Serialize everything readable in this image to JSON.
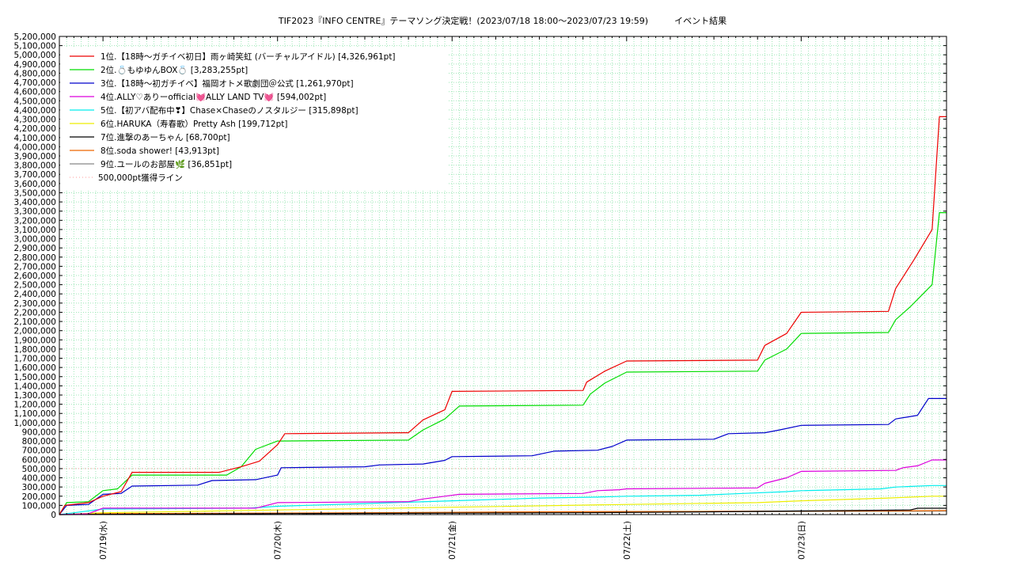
{
  "chart_data": {
    "type": "line",
    "title": "TIF2023『INFO CENTRE』テーマソング決定戦！(2023/07/18 18:00～2023/07/23 19:59)　　　イベント結果",
    "ylim": [
      0,
      5200000
    ],
    "y_tick_step": 100000,
    "x_range": [
      "2023/07/18 18:00",
      "2023/07/23 19:59"
    ],
    "x_ticks": [
      "07/19(水)",
      "07/20(木)",
      "07/21(金)",
      "07/22(土)",
      "07/23(日)"
    ],
    "grid": true,
    "legend_position": "top-left",
    "threshold": {
      "name": "500,000pt獲得ライン",
      "value": 500000,
      "color": "#ff9999"
    },
    "series": [
      {
        "name": "1位.【18時～ガチイベ初日】雨ヶ崎笑虹 (バーチャルアイドル) [4,326,961pt]",
        "color": "#ee0000",
        "points": [
          [
            "2023/07/18 18:00",
            0
          ],
          [
            "2023/07/18 18:45",
            100000
          ],
          [
            "2023/07/18 22:00",
            130000
          ],
          [
            "2023/07/19 00:00",
            200000
          ],
          [
            "2023/07/19 02:30",
            250000
          ],
          [
            "2023/07/19 04:00",
            460000
          ],
          [
            "2023/07/19 16:00",
            460000
          ],
          [
            "2023/07/19 19:00",
            520000
          ],
          [
            "2023/07/19 21:30",
            580000
          ],
          [
            "2023/07/20 00:00",
            760000
          ],
          [
            "2023/07/20 01:00",
            880000
          ],
          [
            "2023/07/20 18:00",
            890000
          ],
          [
            "2023/07/20 20:00",
            1030000
          ],
          [
            "2023/07/20 23:00",
            1140000
          ],
          [
            "2023/07/21 00:00",
            1340000
          ],
          [
            "2023/07/21 18:00",
            1350000
          ],
          [
            "2023/07/21 18:30",
            1440000
          ],
          [
            "2023/07/21 21:00",
            1560000
          ],
          [
            "2023/07/22 00:00",
            1670000
          ],
          [
            "2023/07/22 18:00",
            1680000
          ],
          [
            "2023/07/22 19:00",
            1840000
          ],
          [
            "2023/07/22 22:00",
            1970000
          ],
          [
            "2023/07/23 00:00",
            2200000
          ],
          [
            "2023/07/23 12:00",
            2210000
          ],
          [
            "2023/07/23 13:00",
            2460000
          ],
          [
            "2023/07/23 15:30",
            2770000
          ],
          [
            "2023/07/23 18:00",
            3100000
          ],
          [
            "2023/07/23 19:00",
            4326961
          ],
          [
            "2023/07/23 19:59",
            4326961
          ]
        ]
      },
      {
        "name": "2位.💍もゆゆんBOX💍 [3,283,255pt]",
        "color": "#00dd00",
        "points": [
          [
            "2023/07/18 18:00",
            0
          ],
          [
            "2023/07/18 19:00",
            130000
          ],
          [
            "2023/07/18 22:00",
            140000
          ],
          [
            "2023/07/19 00:00",
            260000
          ],
          [
            "2023/07/19 02:00",
            280000
          ],
          [
            "2023/07/19 04:00",
            430000
          ],
          [
            "2023/07/19 17:00",
            430000
          ],
          [
            "2023/07/19 19:00",
            520000
          ],
          [
            "2023/07/19 21:00",
            710000
          ],
          [
            "2023/07/20 00:00",
            800000
          ],
          [
            "2023/07/20 18:00",
            810000
          ],
          [
            "2023/07/20 20:00",
            920000
          ],
          [
            "2023/07/20 23:00",
            1040000
          ],
          [
            "2023/07/21 01:00",
            1180000
          ],
          [
            "2023/07/21 18:00",
            1190000
          ],
          [
            "2023/07/21 19:00",
            1310000
          ],
          [
            "2023/07/21 21:00",
            1430000
          ],
          [
            "2023/07/22 00:00",
            1550000
          ],
          [
            "2023/07/22 18:00",
            1560000
          ],
          [
            "2023/07/22 19:00",
            1680000
          ],
          [
            "2023/07/22 22:00",
            1800000
          ],
          [
            "2023/07/23 00:00",
            1970000
          ],
          [
            "2023/07/23 12:00",
            1980000
          ],
          [
            "2023/07/23 13:00",
            2120000
          ],
          [
            "2023/07/23 15:00",
            2260000
          ],
          [
            "2023/07/23 18:00",
            2500000
          ],
          [
            "2023/07/23 19:00",
            3283255
          ],
          [
            "2023/07/23 19:59",
            3283255
          ]
        ]
      },
      {
        "name": "3位.【18時～初ガチイベ】福岡オトメ歌劇団＠公式 [1,261,970pt]",
        "color": "#0000cc",
        "points": [
          [
            "2023/07/18 18:00",
            0
          ],
          [
            "2023/07/18 19:00",
            100000
          ],
          [
            "2023/07/18 22:00",
            110000
          ],
          [
            "2023/07/19 00:00",
            220000
          ],
          [
            "2023/07/19 02:30",
            230000
          ],
          [
            "2023/07/19 04:00",
            310000
          ],
          [
            "2023/07/19 13:00",
            320000
          ],
          [
            "2023/07/19 15:00",
            370000
          ],
          [
            "2023/07/19 21:00",
            380000
          ],
          [
            "2023/07/20 00:00",
            430000
          ],
          [
            "2023/07/20 00:30",
            510000
          ],
          [
            "2023/07/20 12:00",
            520000
          ],
          [
            "2023/07/20 14:00",
            540000
          ],
          [
            "2023/07/20 20:00",
            550000
          ],
          [
            "2023/07/20 23:00",
            590000
          ],
          [
            "2023/07/21 00:00",
            630000
          ],
          [
            "2023/07/21 11:00",
            640000
          ],
          [
            "2023/07/21 14:00",
            690000
          ],
          [
            "2023/07/21 20:00",
            700000
          ],
          [
            "2023/07/21 22:00",
            740000
          ],
          [
            "2023/07/22 00:00",
            810000
          ],
          [
            "2023/07/22 12:00",
            820000
          ],
          [
            "2023/07/22 14:00",
            880000
          ],
          [
            "2023/07/22 19:00",
            890000
          ],
          [
            "2023/07/22 21:00",
            920000
          ],
          [
            "2023/07/23 00:00",
            970000
          ],
          [
            "2023/07/23 12:00",
            980000
          ],
          [
            "2023/07/23 13:00",
            1040000
          ],
          [
            "2023/07/23 16:00",
            1080000
          ],
          [
            "2023/07/23 17:30",
            1261970
          ],
          [
            "2023/07/23 19:59",
            1261970
          ]
        ]
      },
      {
        "name": "4位.ALLY♡ありーofficial💓ALLY LAND TV💓 [594,002pt]",
        "color": "#dd00dd",
        "points": [
          [
            "2023/07/18 18:00",
            0
          ],
          [
            "2023/07/18 22:00",
            10000
          ],
          [
            "2023/07/19 00:00",
            70000
          ],
          [
            "2023/07/19 21:00",
            70000
          ],
          [
            "2023/07/20 00:00",
            130000
          ],
          [
            "2023/07/20 18:00",
            140000
          ],
          [
            "2023/07/20 20:00",
            170000
          ],
          [
            "2023/07/20 23:00",
            200000
          ],
          [
            "2023/07/21 01:00",
            220000
          ],
          [
            "2023/07/21 18:00",
            230000
          ],
          [
            "2023/07/21 20:00",
            260000
          ],
          [
            "2023/07/21 23:00",
            270000
          ],
          [
            "2023/07/22 00:00",
            280000
          ],
          [
            "2023/07/22 18:00",
            290000
          ],
          [
            "2023/07/22 19:00",
            340000
          ],
          [
            "2023/07/22 22:00",
            400000
          ],
          [
            "2023/07/23 00:00",
            470000
          ],
          [
            "2023/07/23 13:00",
            480000
          ],
          [
            "2023/07/23 14:00",
            510000
          ],
          [
            "2023/07/23 16:00",
            530000
          ],
          [
            "2023/07/23 18:00",
            594002
          ],
          [
            "2023/07/23 19:59",
            594002
          ]
        ]
      },
      {
        "name": "5位.【初アバ配布中❣】Chase×Chaseのノスタルジー [315,898pt]",
        "color": "#00eeee",
        "points": [
          [
            "2023/07/18 18:00",
            0
          ],
          [
            "2023/07/18 20:00",
            20000
          ],
          [
            "2023/07/19 00:00",
            60000
          ],
          [
            "2023/07/19 20:00",
            70000
          ],
          [
            "2023/07/20 00:00",
            90000
          ],
          [
            "2023/07/20 12:00",
            120000
          ],
          [
            "2023/07/21 00:00",
            150000
          ],
          [
            "2023/07/21 08:00",
            170000
          ],
          [
            "2023/07/21 12:00",
            180000
          ],
          [
            "2023/07/21 20:00",
            190000
          ],
          [
            "2023/07/22 00:00",
            200000
          ],
          [
            "2023/07/22 10:00",
            210000
          ],
          [
            "2023/07/22 16:00",
            230000
          ],
          [
            "2023/07/22 22:00",
            250000
          ],
          [
            "2023/07/23 00:00",
            260000
          ],
          [
            "2023/07/23 11:00",
            280000
          ],
          [
            "2023/07/23 13:00",
            300000
          ],
          [
            "2023/07/23 18:00",
            315898
          ],
          [
            "2023/07/23 19:59",
            315898
          ]
        ]
      },
      {
        "name": "6位.HARUKA（寿春歌）Pretty Ash [199,712pt]",
        "color": "#eeee00",
        "points": [
          [
            "2023/07/18 18:00",
            0
          ],
          [
            "2023/07/19 00:00",
            20000
          ],
          [
            "2023/07/20 00:00",
            50000
          ],
          [
            "2023/07/21 00:00",
            80000
          ],
          [
            "2023/07/22 00:00",
            110000
          ],
          [
            "2023/07/22 18:00",
            130000
          ],
          [
            "2023/07/23 00:00",
            150000
          ],
          [
            "2023/07/23 12:00",
            180000
          ],
          [
            "2023/07/23 18:00",
            199712
          ],
          [
            "2023/07/23 19:59",
            199712
          ]
        ]
      },
      {
        "name": "7位.進撃のあーちゃん [68,700pt]",
        "color": "#000000",
        "points": [
          [
            "2023/07/18 18:00",
            0
          ],
          [
            "2023/07/20 00:00",
            10000
          ],
          [
            "2023/07/21 18:00",
            20000
          ],
          [
            "2023/07/22 12:00",
            30000
          ],
          [
            "2023/07/23 00:00",
            40000
          ],
          [
            "2023/07/23 15:00",
            50000
          ],
          [
            "2023/07/23 16:00",
            68700
          ],
          [
            "2023/07/23 19:59",
            68700
          ]
        ]
      },
      {
        "name": "8位.soda shower! [43,913pt]",
        "color": "#ee6600",
        "points": [
          [
            "2023/07/18 18:00",
            0
          ],
          [
            "2023/07/19 00:00",
            10000
          ],
          [
            "2023/07/20 12:00",
            20000
          ],
          [
            "2023/07/21 12:00",
            30000
          ],
          [
            "2023/07/22 12:00",
            35000
          ],
          [
            "2023/07/23 12:00",
            40000
          ],
          [
            "2023/07/23 19:59",
            43913
          ]
        ]
      },
      {
        "name": "9位.ユールのお部屋🌿 [36,851pt]",
        "color": "#888888",
        "points": [
          [
            "2023/07/18 18:00",
            0
          ],
          [
            "2023/07/19 00:00",
            8000
          ],
          [
            "2023/07/20 00:00",
            15000
          ],
          [
            "2023/07/21 00:00",
            22000
          ],
          [
            "2023/07/22 00:00",
            28000
          ],
          [
            "2023/07/23 00:00",
            33000
          ],
          [
            "2023/07/23 19:59",
            36851
          ]
        ]
      }
    ]
  }
}
